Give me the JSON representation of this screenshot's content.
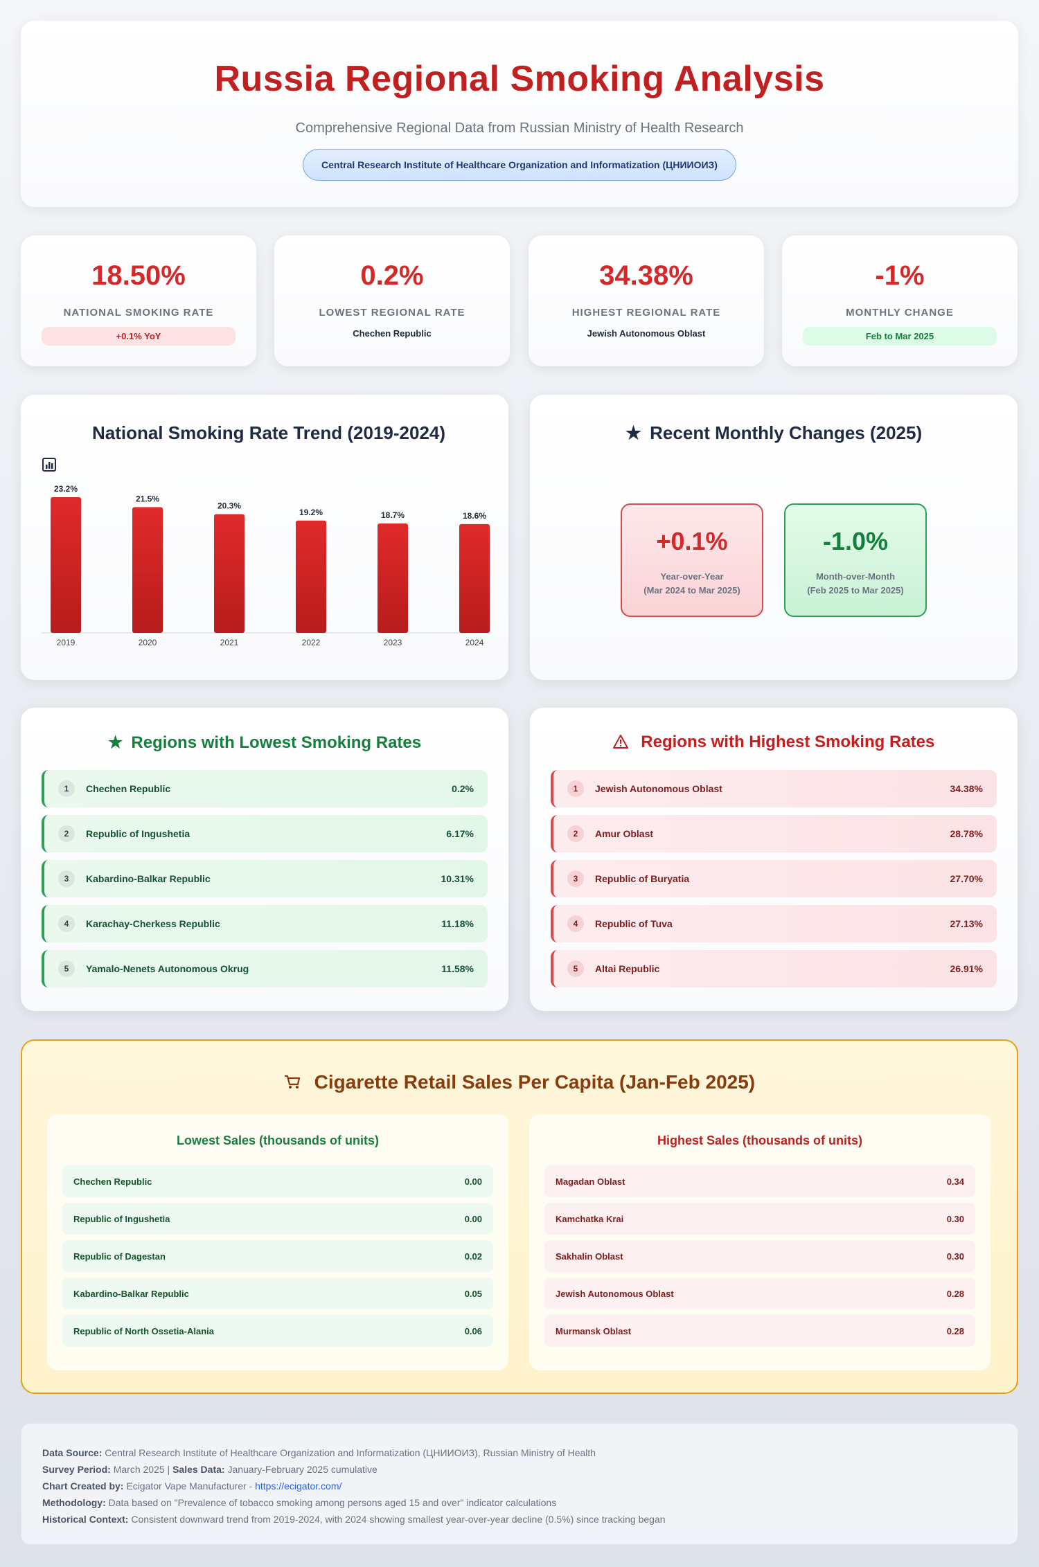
{
  "header": {
    "title": "Russia Regional Smoking Analysis",
    "subtitle": "Comprehensive Regional Data from Russian Ministry of Health Research",
    "badge": "Central Research Institute of Healthcare Organization and Informatization (ЦНИИОИЗ)"
  },
  "stats": [
    {
      "value": "18.50%",
      "label": "National Smoking Rate",
      "pill": "+0.1% YoY"
    },
    {
      "value": "0.2%",
      "label": "Lowest Regional Rate",
      "sub": "Chechen Republic"
    },
    {
      "value": "34.38%",
      "label": "Highest Regional Rate",
      "sub": "Jewish Autonomous Oblast"
    },
    {
      "value": "-1%",
      "label": "Monthly Change",
      "pill": "Feb to Mar 2025"
    }
  ],
  "trend": {
    "title": "National Smoking Rate Trend (2019-2024)",
    "icon": "bar-chart-icon"
  },
  "chart_data": {
    "type": "bar",
    "title": "National Smoking Rate Trend (2019-2024)",
    "categories": [
      "2019",
      "2020",
      "2021",
      "2022",
      "2023",
      "2024"
    ],
    "values": [
      23.2,
      21.5,
      20.3,
      19.2,
      18.7,
      18.6
    ],
    "data_labels": [
      "23.2%",
      "21.5%",
      "20.3%",
      "19.2%",
      "18.7%",
      "18.6%"
    ],
    "color": "#d62828"
  },
  "monthly": {
    "title": "Recent Monthly Changes (2025)",
    "icon": "star-icon",
    "yoy": {
      "value": "+0.1%",
      "label": "Year-over-Year",
      "period": "(Mar 2024 to Mar 2025)"
    },
    "mom": {
      "value": "-1.0%",
      "label": "Month-over-Month",
      "period": "(Feb 2025 to Mar 2025)"
    }
  },
  "lowest": {
    "title": "Regions with Lowest Smoking Rates",
    "icon": "star-icon",
    "items": [
      {
        "rank": "1",
        "name": "Chechen Republic",
        "value": "0.2%"
      },
      {
        "rank": "2",
        "name": "Republic of Ingushetia",
        "value": "6.17%"
      },
      {
        "rank": "3",
        "name": "Kabardino-Balkar Republic",
        "value": "10.31%"
      },
      {
        "rank": "4",
        "name": "Karachay-Cherkess Republic",
        "value": "11.18%"
      },
      {
        "rank": "5",
        "name": "Yamalo-Nenets Autonomous Okrug",
        "value": "11.58%"
      }
    ]
  },
  "highest": {
    "title": "Regions with Highest Smoking Rates",
    "icon": "warning-icon",
    "items": [
      {
        "rank": "1",
        "name": "Jewish Autonomous Oblast",
        "value": "34.38%"
      },
      {
        "rank": "2",
        "name": "Amur Oblast",
        "value": "28.78%"
      },
      {
        "rank": "3",
        "name": "Republic of Buryatia",
        "value": "27.70%"
      },
      {
        "rank": "4",
        "name": "Republic of Tuva",
        "value": "27.13%"
      },
      {
        "rank": "5",
        "name": "Altai Republic",
        "value": "26.91%"
      }
    ]
  },
  "sales": {
    "title": "Cigarette Retail Sales Per Capita (Jan-Feb 2025)",
    "icon": "cart-icon",
    "lowest": {
      "title": "Lowest Sales (thousands of units)",
      "items": [
        {
          "name": "Chechen Republic",
          "value": "0.00"
        },
        {
          "name": "Republic of Ingushetia",
          "value": "0.00"
        },
        {
          "name": "Republic of Dagestan",
          "value": "0.02"
        },
        {
          "name": "Kabardino-Balkar Republic",
          "value": "0.05"
        },
        {
          "name": "Republic of North Ossetia-Alania",
          "value": "0.06"
        }
      ]
    },
    "highest": {
      "title": "Highest Sales (thousands of units)",
      "items": [
        {
          "name": "Magadan Oblast",
          "value": "0.34"
        },
        {
          "name": "Kamchatka Krai",
          "value": "0.30"
        },
        {
          "name": "Sakhalin Oblast",
          "value": "0.30"
        },
        {
          "name": "Jewish Autonomous Oblast",
          "value": "0.28"
        },
        {
          "name": "Murmansk Oblast",
          "value": "0.28"
        }
      ]
    }
  },
  "footer": {
    "source_label": "Data Source:",
    "source": "Central Research Institute of Healthcare Organization and Informatization (ЦНИИОИЗ), Russian Ministry of Health",
    "survey_label": "Survey Period:",
    "survey": "March 2025 |",
    "sales_label": "Sales Data:",
    "sales": "January-February 2025 cumulative",
    "created_label": "Chart Created by:",
    "created": "Ecigator Vape Manufacturer -",
    "link": "https://ecigator.com/",
    "method_label": "Methodology:",
    "method": "Data based on \"Prevalence of tobacco smoking among persons aged 15 and over\" indicator calculations",
    "history_label": "Historical Context:",
    "history": "Consistent downward trend from 2019-2024, with 2024 showing smallest year-over-year decline (0.5%) since tracking began"
  }
}
